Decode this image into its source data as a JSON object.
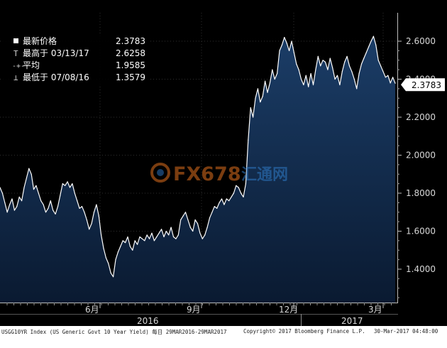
{
  "legend": {
    "rows": [
      {
        "label": "最新价格",
        "value": "2.3783"
      },
      {
        "label": "最高于 03/13/17",
        "value": "2.6258"
      },
      {
        "label": "平均",
        "value": "1.9585"
      },
      {
        "label": "最低于 07/08/16",
        "value": "1.3579"
      }
    ]
  },
  "watermark": {
    "brand": "FX678",
    "cn": "汇通网"
  },
  "last_price_tag": "2.3783",
  "footer": {
    "left": "USGG10YR Index (US Generic Govt 10 Year Yield)  每日 29MAR2016-29MAR2017",
    "center": "Copyright© 2017 Bloomberg Finance L.P.",
    "right": "30-Mar-2017 04:48:00"
  },
  "colors": {
    "background": "#000000",
    "area_top": "#16345a",
    "area_bottom": "#0b1b33",
    "line": "#ffffff",
    "grid": "#2e2e2e"
  },
  "chart_data": {
    "type": "area",
    "title": "",
    "xlabel": "",
    "ylabel": "",
    "ylim": [
      1.25,
      2.7
    ],
    "yticks": [
      "2.6000",
      "2.4000",
      "2.2000",
      "2.0000",
      "1.8000",
      "1.6000",
      "1.4000"
    ],
    "month_labels": [
      "6月",
      "9月",
      "12月",
      "3月"
    ],
    "year_labels": [
      "2016",
      "2017"
    ],
    "grid": true,
    "series": [
      {
        "values": [
          1.83,
          1.8,
          1.75,
          1.7,
          1.74,
          1.77,
          1.71,
          1.73,
          1.78,
          1.76,
          1.83,
          1.88,
          1.93,
          1.9,
          1.82,
          1.84,
          1.8,
          1.76,
          1.74,
          1.7,
          1.72,
          1.76,
          1.71,
          1.69,
          1.73,
          1.79,
          1.85,
          1.84,
          1.86,
          1.83,
          1.85,
          1.8,
          1.76,
          1.72,
          1.73,
          1.7,
          1.66,
          1.61,
          1.64,
          1.7,
          1.74,
          1.68,
          1.58,
          1.51,
          1.46,
          1.43,
          1.38,
          1.36,
          1.45,
          1.49,
          1.52,
          1.55,
          1.54,
          1.57,
          1.52,
          1.5,
          1.55,
          1.53,
          1.57,
          1.56,
          1.55,
          1.58,
          1.56,
          1.59,
          1.55,
          1.57,
          1.59,
          1.61,
          1.57,
          1.6,
          1.58,
          1.62,
          1.57,
          1.56,
          1.58,
          1.66,
          1.68,
          1.7,
          1.66,
          1.62,
          1.6,
          1.66,
          1.64,
          1.59,
          1.56,
          1.58,
          1.62,
          1.67,
          1.7,
          1.73,
          1.72,
          1.75,
          1.77,
          1.74,
          1.77,
          1.76,
          1.78,
          1.8,
          1.84,
          1.83,
          1.8,
          1.78,
          1.85,
          2.08,
          2.25,
          2.2,
          2.3,
          2.35,
          2.28,
          2.31,
          2.39,
          2.33,
          2.38,
          2.45,
          2.4,
          2.43,
          2.55,
          2.58,
          2.62,
          2.59,
          2.55,
          2.6,
          2.54,
          2.48,
          2.45,
          2.4,
          2.37,
          2.42,
          2.36,
          2.43,
          2.37,
          2.45,
          2.52,
          2.47,
          2.5,
          2.49,
          2.45,
          2.51,
          2.46,
          2.4,
          2.42,
          2.37,
          2.44,
          2.49,
          2.52,
          2.47,
          2.44,
          2.4,
          2.35,
          2.43,
          2.48,
          2.51,
          2.54,
          2.57,
          2.6,
          2.6258,
          2.58,
          2.5,
          2.47,
          2.44,
          2.41,
          2.42,
          2.38,
          2.41,
          2.3783
        ]
      }
    ]
  }
}
